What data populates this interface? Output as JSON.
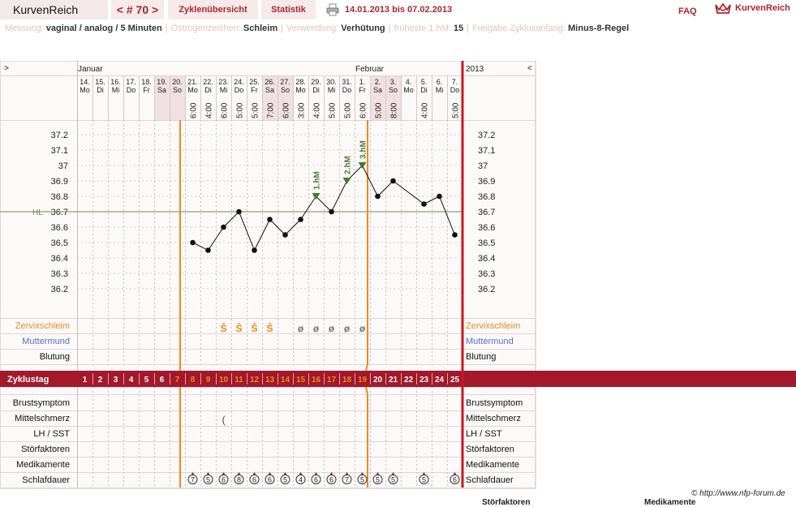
{
  "header": {
    "brand": "KurvenReich",
    "cycle_nav": "< # 70 >",
    "tabs": [
      "Zyklenübersicht",
      "Statistik"
    ],
    "date_range": "14.01.2013 bis 07.02.2013",
    "faq": "FAQ",
    "logo_text": "KurvenReich"
  },
  "info": [
    {
      "label": "Messung:",
      "value": "vaginal / analog / 5 Minuten"
    },
    {
      "label": "Östrogenzeichen:",
      "value": "Schleim"
    },
    {
      "label": "Verwendung:",
      "value": "Verhütung"
    },
    {
      "label": "früheste 1.hM:",
      "value": "15"
    },
    {
      "label": "Freigabe Zyklusanfang:",
      "value": "Minus-8-Regel"
    }
  ],
  "chart": {
    "left_arrow": ">",
    "right_arrow": "<",
    "year": "2013",
    "months": [
      {
        "label": "Januar",
        "col": 0
      },
      {
        "label": "Februar",
        "col": 18
      }
    ],
    "days": [
      {
        "d": "14.",
        "w": "Mo",
        "t": "",
        "we": false
      },
      {
        "d": "15.",
        "w": "Di",
        "t": "",
        "we": false
      },
      {
        "d": "16.",
        "w": "Mi",
        "t": "",
        "we": false
      },
      {
        "d": "17.",
        "w": "Do",
        "t": "",
        "we": false
      },
      {
        "d": "18.",
        "w": "Fr",
        "t": "",
        "we": false
      },
      {
        "d": "19.",
        "w": "Sa",
        "t": "",
        "we": true
      },
      {
        "d": "20.",
        "w": "So",
        "t": "",
        "we": true
      },
      {
        "d": "21.",
        "w": "Mo",
        "t": "6:00",
        "we": false
      },
      {
        "d": "22.",
        "w": "Di",
        "t": "4:00",
        "we": false
      },
      {
        "d": "23.",
        "w": "Mi",
        "t": "6:00",
        "we": false
      },
      {
        "d": "24.",
        "w": "Do",
        "t": "5:00",
        "we": false
      },
      {
        "d": "25.",
        "w": "Fr",
        "t": "5:00",
        "we": false
      },
      {
        "d": "26.",
        "w": "Sa",
        "t": "7:00",
        "we": true
      },
      {
        "d": "27.",
        "w": "So",
        "t": "6:00",
        "we": true
      },
      {
        "d": "28.",
        "w": "Mo",
        "t": "3:00",
        "we": false
      },
      {
        "d": "29.",
        "w": "Di",
        "t": "4:00",
        "we": false
      },
      {
        "d": "30.",
        "w": "Mi",
        "t": "5:00",
        "we": false
      },
      {
        "d": "31.",
        "w": "Do",
        "t": "5:00",
        "we": false
      },
      {
        "d": "1.",
        "w": "Fr",
        "t": "6:00",
        "we": false
      },
      {
        "d": "2.",
        "w": "Sa",
        "t": "5:00",
        "we": true
      },
      {
        "d": "3.",
        "w": "So",
        "t": "8:00",
        "we": true
      },
      {
        "d": "4.",
        "w": "Mo",
        "t": "",
        "we": false
      },
      {
        "d": "5.",
        "w": "Di",
        "t": "4:00",
        "we": false
      },
      {
        "d": "6.",
        "w": "Mi",
        "t": "",
        "we": false
      },
      {
        "d": "7.",
        "w": "Do",
        "t": "5:00",
        "we": false
      }
    ],
    "temp_ticks": [
      "37.2",
      "37.1",
      "37",
      "36.9",
      "36.8",
      "36.7",
      "36.6",
      "36.5",
      "36.4",
      "36.3",
      "36.2"
    ],
    "hl_label": "HL",
    "hl_value": 36.7,
    "temps": [
      null,
      null,
      null,
      null,
      null,
      null,
      null,
      36.5,
      36.45,
      36.6,
      36.7,
      36.45,
      36.65,
      36.55,
      36.65,
      36.8,
      36.7,
      36.9,
      37.0,
      36.8,
      36.9,
      null,
      36.75,
      36.8,
      36.55
    ],
    "hm_markers": [
      {
        "col": 15,
        "label": "1.hM"
      },
      {
        "col": 17,
        "label": "2.hM"
      },
      {
        "col": 18,
        "label": "3.hM"
      }
    ],
    "ovulation_col": 19,
    "cycle_start_col": 6,
    "rows_top": [
      "Zervixschleim",
      "Muttermund",
      "Blutung"
    ],
    "zervix": [
      "",
      "",
      "",
      "",
      "",
      "",
      "",
      "",
      "",
      "Ŝ",
      "Ŝ",
      "Ŝ",
      "Ŝ",
      "",
      "ø",
      "ø",
      "ø",
      "ø",
      "ø",
      "",
      "",
      "",
      "",
      "",
      ""
    ],
    "zyklustag_label": "Zyklustag",
    "zyklustag": [
      "1",
      "2",
      "3",
      "4",
      "5",
      "6",
      "7",
      "8",
      "9",
      "10",
      "11",
      "12",
      "13",
      "14",
      "15",
      "16",
      "17",
      "18",
      "19",
      "20",
      "21",
      "22",
      "23",
      "24",
      "25"
    ],
    "rows_bottom": [
      "Brustsymptom",
      "Mittelschmerz",
      "LH / SST",
      "Störfaktoren",
      "Medikamente",
      "Schlafdauer"
    ],
    "mittelschmerz_col": 9,
    "mittelschmerz_symbol": "(",
    "sleep": [
      "",
      "",
      "",
      "",
      "",
      "",
      "",
      "7",
      "5",
      "6",
      "8",
      "6",
      "6",
      "5",
      "4",
      "6",
      "6",
      "7",
      "5",
      "5",
      "5",
      "",
      "5",
      "",
      "6"
    ]
  },
  "footer": {
    "copyright": "© http://www.nfp-forum.de",
    "cut_left": "Störfaktoren",
    "cut_right": "Medikamente"
  },
  "colors": {
    "accent": "#b0252e",
    "weekend": "#f0e0e3",
    "grid": "#c9bcbc",
    "orange": "#f08a1c",
    "zyklus_bar": "#a3182a",
    "hl_line": "#6b8f3e",
    "hm_text": "#4f7f3a",
    "muttermund": "#5470c8"
  }
}
